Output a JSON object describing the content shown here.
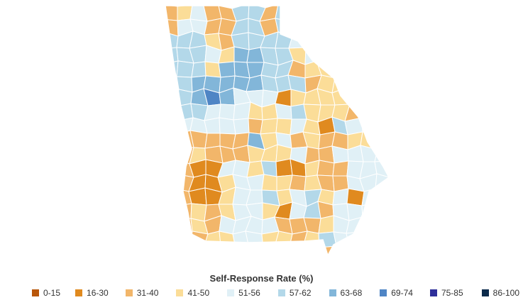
{
  "legend": {
    "title": "Self-Response Rate (%)",
    "bins": [
      {
        "label": "0-15",
        "color": "#b8560a"
      },
      {
        "label": "16-30",
        "color": "#e08a1f"
      },
      {
        "label": "31-40",
        "color": "#f2b66a"
      },
      {
        "label": "41-50",
        "color": "#fbdd98"
      },
      {
        "label": "51-56",
        "color": "#e0f0f6"
      },
      {
        "label": "57-62",
        "color": "#b3d8e9"
      },
      {
        "label": "63-68",
        "color": "#82b6d9"
      },
      {
        "label": "69-74",
        "color": "#4f85c5"
      },
      {
        "label": "75-85",
        "color": "#2e2f9a"
      },
      {
        "label": "86-100",
        "color": "#0b2a4a"
      }
    ]
  }
}
